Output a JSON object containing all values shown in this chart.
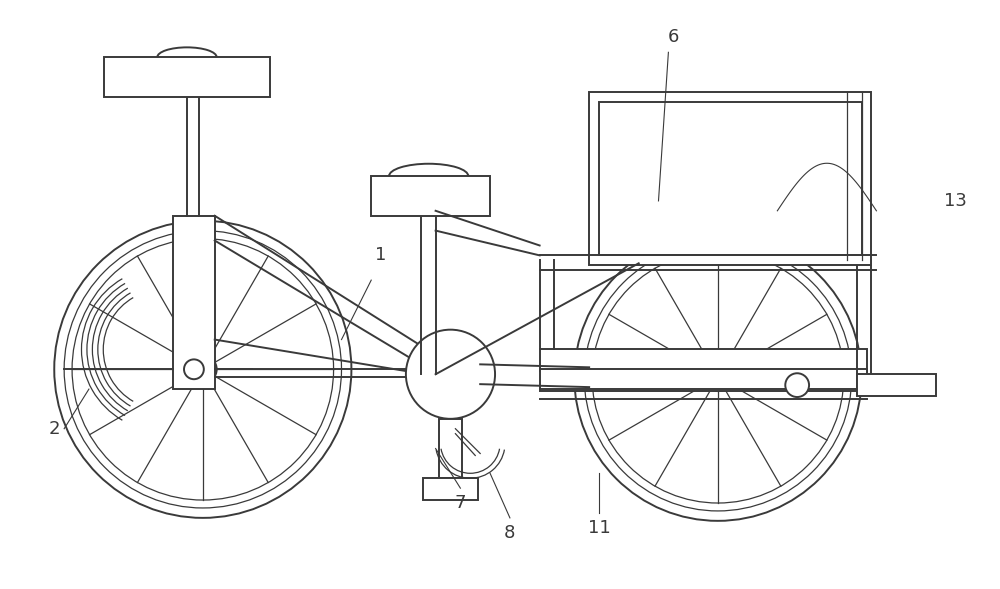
{
  "bg_color": "#ffffff",
  "lc": "#3a3a3a",
  "lw": 1.4,
  "tlw": 0.9,
  "fig_w": 10.0,
  "fig_h": 5.89
}
